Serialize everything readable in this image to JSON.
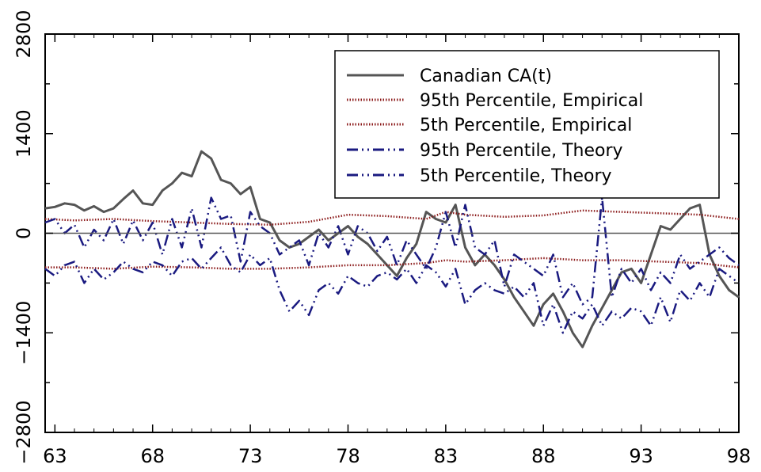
{
  "chart_data": {
    "type": "line",
    "title": "",
    "xlabel": "",
    "ylabel": "",
    "xlim": [
      62.5,
      98
    ],
    "ylim": [
      -2800,
      2800
    ],
    "x_ticks": [
      63,
      68,
      73,
      78,
      83,
      88,
      93,
      98
    ],
    "x_tick_labels": [
      "63",
      "68",
      "73",
      "78",
      "83",
      "88",
      "93",
      "98"
    ],
    "y_ticks": [
      -2800,
      -1400,
      0,
      1400,
      2800
    ],
    "y_tick_labels": [
      "−2800",
      "−1400",
      "0",
      "1400",
      "2800"
    ],
    "grid": false,
    "zero_line": true,
    "legend_position": "top-right",
    "legend": [
      "Canadian CA(t)",
      "95th Percentile, Empirical",
      "5th Percentile, Empirical",
      "95th Percentile, Theory",
      "5th Percentile, Theory"
    ],
    "series": [
      {
        "name": "Canadian CA(t)",
        "color": "#555555",
        "style": "solid",
        "x": [
          62.5,
          63,
          63.5,
          64,
          64.5,
          65,
          65.5,
          66,
          66.5,
          67,
          67.5,
          68,
          68.5,
          69,
          69.5,
          70,
          70.5,
          71,
          71.5,
          72,
          72.5,
          73,
          73.5,
          74,
          74.5,
          75,
          75.5,
          76,
          76.5,
          77,
          77.5,
          78,
          78.5,
          79,
          79.5,
          80,
          80.5,
          81,
          81.5,
          82,
          82.5,
          83,
          83.5,
          84,
          84.5,
          85,
          85.5,
          86,
          86.5,
          87,
          87.5,
          88,
          88.5,
          89,
          89.5,
          90,
          90.5,
          91,
          91.5,
          92,
          92.5,
          93,
          93.5,
          94,
          94.5,
          95,
          95.5,
          96,
          96.5,
          97,
          97.5,
          98
        ],
        "values": [
          350,
          370,
          420,
          400,
          320,
          380,
          300,
          350,
          480,
          600,
          420,
          400,
          600,
          700,
          850,
          800,
          1150,
          1050,
          750,
          700,
          550,
          650,
          200,
          150,
          -100,
          -200,
          -150,
          -50,
          50,
          -100,
          0,
          100,
          -50,
          -150,
          -300,
          -450,
          -600,
          -350,
          -150,
          300,
          200,
          150,
          400,
          -200,
          -450,
          -300,
          -450,
          -650,
          -900,
          -1100,
          -1300,
          -1000,
          -850,
          -1100,
          -1400,
          -1600,
          -1300,
          -1050,
          -800,
          -550,
          -500,
          -700,
          -300,
          100,
          50,
          200,
          350,
          400,
          -300,
          -600,
          -800,
          -900
        ]
      },
      {
        "name": "95th Percentile, Empirical",
        "color": "#8b1a1a",
        "style": "dotted",
        "x": [
          62.5,
          64,
          66,
          68,
          70,
          72,
          74,
          76,
          78,
          80,
          82,
          83,
          84,
          86,
          88,
          90,
          92,
          94,
          96,
          98
        ],
        "values": [
          200,
          180,
          200,
          170,
          150,
          130,
          120,
          160,
          260,
          240,
          200,
          300,
          260,
          230,
          250,
          320,
          300,
          280,
          260,
          200
        ]
      },
      {
        "name": "5th Percentile, Empirical",
        "color": "#8b1a1a",
        "style": "dotted",
        "x": [
          62.5,
          64,
          66,
          68,
          70,
          72,
          74,
          76,
          78,
          80,
          82,
          83,
          84,
          86,
          88,
          90,
          92,
          94,
          96,
          98
        ],
        "values": [
          -480,
          -480,
          -500,
          -470,
          -480,
          -500,
          -500,
          -480,
          -450,
          -450,
          -420,
          -380,
          -400,
          -380,
          -350,
          -380,
          -380,
          -400,
          -420,
          -480
        ]
      },
      {
        "name": "95th Percentile, Theory",
        "color": "#1a1a80",
        "style": "dashdot",
        "x": [
          62.5,
          63,
          63.5,
          64,
          64.5,
          65,
          65.5,
          66,
          66.5,
          67,
          67.5,
          68,
          68.5,
          69,
          69.5,
          70,
          70.5,
          71,
          71.5,
          72,
          72.5,
          73,
          73.5,
          74,
          74.5,
          75,
          75.5,
          76,
          76.5,
          77,
          77.5,
          78,
          78.5,
          79,
          79.5,
          80,
          80.5,
          81,
          81.5,
          82,
          82.5,
          83,
          83.5,
          84,
          84.5,
          85,
          85.5,
          86,
          86.5,
          87,
          87.5,
          88,
          88.5,
          89,
          89.5,
          90,
          90.5,
          91,
          91.5,
          92,
          92.5,
          93,
          93.5,
          94,
          94.5,
          95,
          95.5,
          96,
          96.5,
          97,
          97.5,
          98
        ],
        "values": [
          150,
          200,
          0,
          120,
          -200,
          50,
          -100,
          200,
          -150,
          180,
          -100,
          150,
          -300,
          200,
          -200,
          350,
          -200,
          500,
          200,
          250,
          -400,
          300,
          100,
          0,
          -300,
          -200,
          -100,
          -450,
          0,
          -200,
          100,
          -300,
          100,
          0,
          -250,
          -50,
          -450,
          -100,
          -300,
          -500,
          -200,
          300,
          -200,
          400,
          -200,
          -300,
          -100,
          -750,
          -300,
          -400,
          -500,
          -600,
          -300,
          -900,
          -700,
          -1000,
          -900,
          500,
          -900,
          -500,
          -700,
          -500,
          -800,
          -550,
          -700,
          -300,
          -500,
          -400,
          -300,
          -200,
          -350,
          -450
        ]
      },
      {
        "name": "5th Percentile, Theory",
        "color": "#1a1a80",
        "style": "dashdot",
        "x": [
          62.5,
          63,
          63.5,
          64,
          64.5,
          65,
          65.5,
          66,
          66.5,
          67,
          67.5,
          68,
          68.5,
          69,
          69.5,
          70,
          70.5,
          71,
          71.5,
          72,
          72.5,
          73,
          73.5,
          74,
          74.5,
          75,
          75.5,
          76,
          76.5,
          77,
          77.5,
          78,
          78.5,
          79,
          79.5,
          80,
          80.5,
          81,
          81.5,
          82,
          82.5,
          83,
          83.5,
          84,
          84.5,
          85,
          85.5,
          86,
          86.5,
          87,
          87.5,
          88,
          88.5,
          89,
          89.5,
          90,
          90.5,
          91,
          91.5,
          92,
          92.5,
          93,
          93.5,
          94,
          94.5,
          95,
          95.5,
          96,
          96.5,
          97,
          97.5,
          98
        ],
        "values": [
          -500,
          -600,
          -450,
          -400,
          -700,
          -500,
          -650,
          -550,
          -400,
          -500,
          -550,
          -400,
          -450,
          -600,
          -400,
          -350,
          -500,
          -350,
          -200,
          -450,
          -550,
          -300,
          -450,
          -350,
          -800,
          -1100,
          -950,
          -1150,
          -800,
          -700,
          -850,
          -600,
          -700,
          -750,
          -600,
          -550,
          -650,
          -500,
          -700,
          -450,
          -550,
          -750,
          -500,
          -1000,
          -800,
          -700,
          -800,
          -850,
          -750,
          -900,
          -700,
          -1300,
          -1000,
          -1400,
          -1100,
          -1200,
          -1000,
          -1300,
          -1100,
          -1200,
          -1050,
          -1100,
          -1300,
          -900,
          -1250,
          -800,
          -950,
          -700,
          -900,
          -500,
          -600,
          -700
        ]
      }
    ]
  }
}
